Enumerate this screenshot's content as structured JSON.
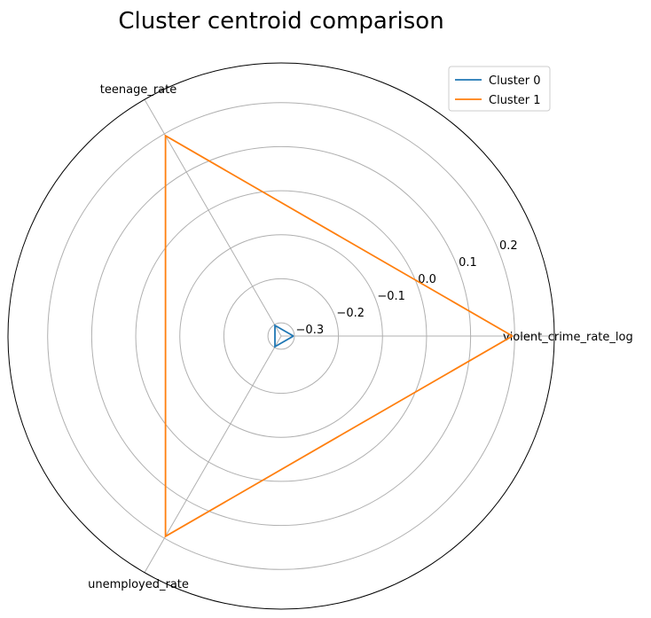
{
  "chart_data": {
    "type": "radar",
    "title": "Cluster centroid comparison",
    "axes": [
      "violent_crime_rate_log",
      "teenage_rate",
      "unemployed_rate"
    ],
    "r_ticks": [
      -0.3,
      -0.2,
      -0.1,
      0.0,
      0.1,
      0.2
    ],
    "r_tick_labels": [
      "−0.3",
      "−0.2",
      "−0.1",
      "0.0",
      "0.1",
      "0.2"
    ],
    "rlim": [
      -0.33,
      0.29
    ],
    "grid": true,
    "legend_position": "top-right",
    "series": [
      {
        "name": "Cluster 0",
        "color": "#1f77b4",
        "values": [
          -0.302,
          -0.302,
          -0.302
        ]
      },
      {
        "name": "Cluster 1",
        "color": "#ff7f0e",
        "values": [
          0.195,
          0.195,
          0.195
        ]
      }
    ]
  }
}
